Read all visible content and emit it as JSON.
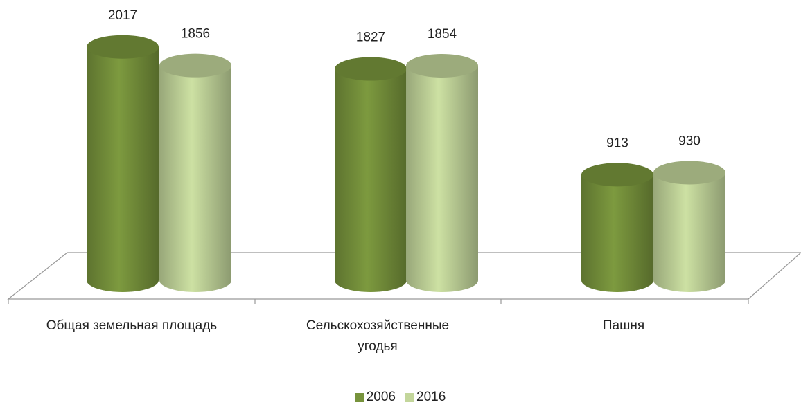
{
  "chart_data": {
    "type": "bar",
    "categories": [
      "Общая земельная площадь",
      "Сельскохозяйственные угодья",
      "Пашня"
    ],
    "series": [
      {
        "name": "2006",
        "color": "#77933c",
        "values": [
          2017,
          1827,
          913
        ]
      },
      {
        "name": "2016",
        "color": "#c3d69b",
        "values": [
          1856,
          1854,
          930
        ]
      }
    ],
    "ylim": [
      0,
      2500
    ]
  }
}
